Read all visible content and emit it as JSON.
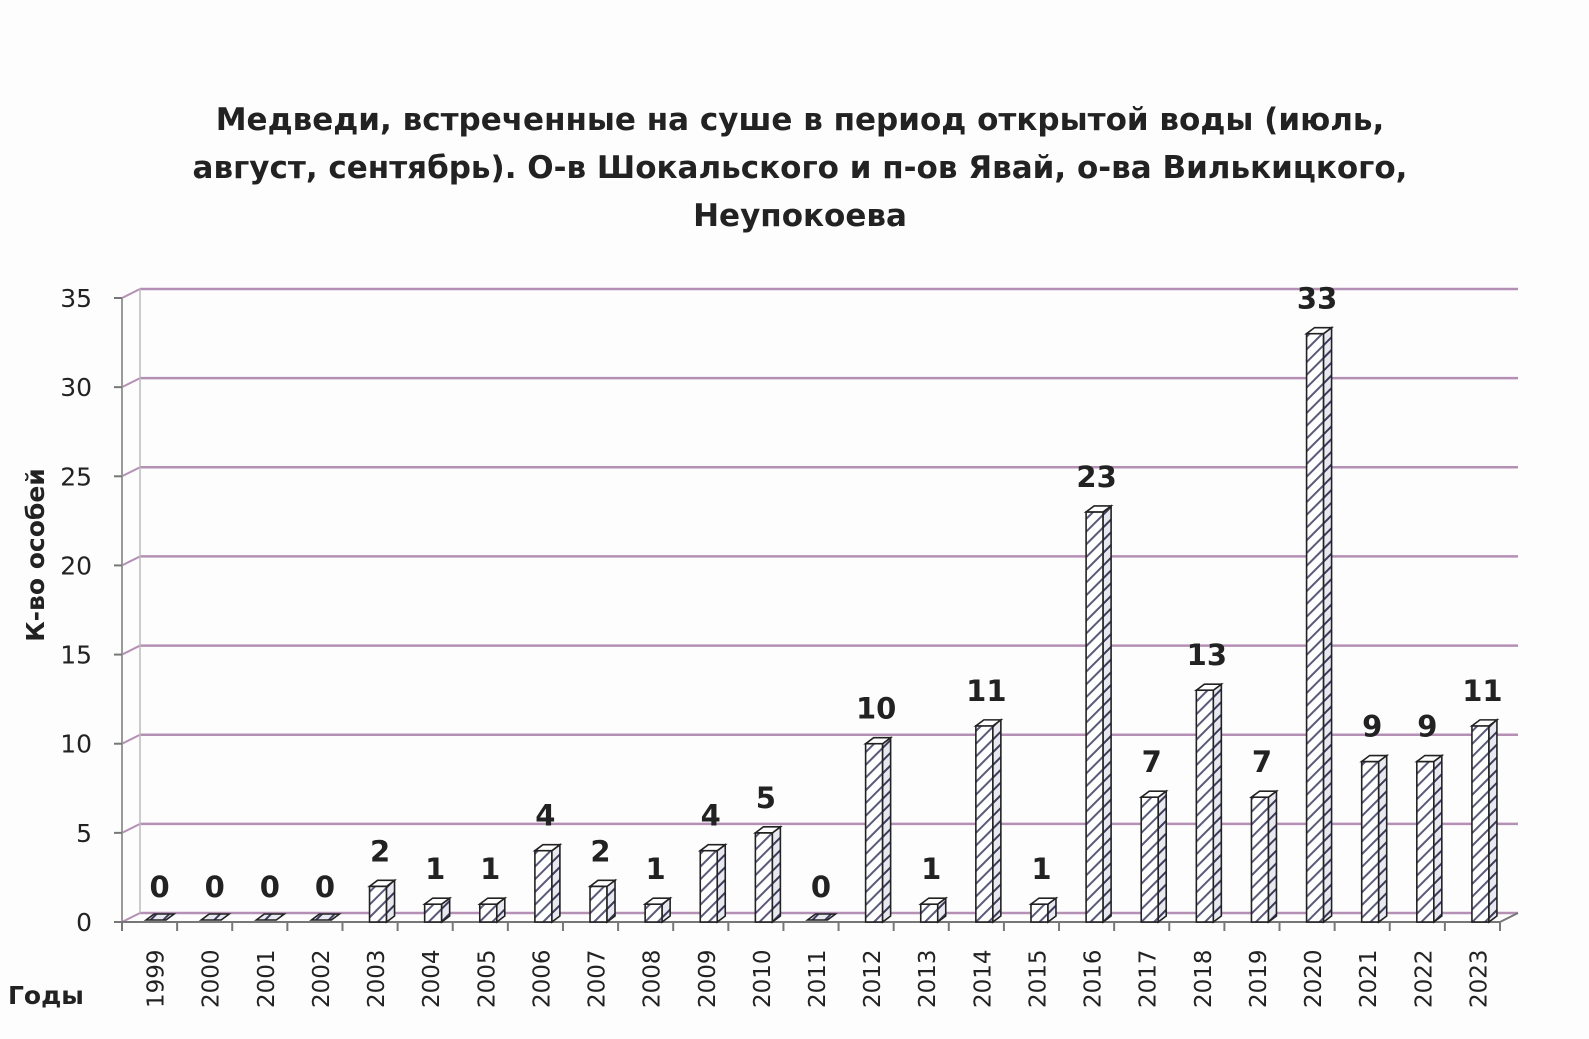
{
  "chart_data": {
    "type": "bar",
    "title_lines": [
      "Медведи, встреченные на суше в период открытой воды (июль,",
      "август, сентябрь). О-в Шокальского и п-ов Явай, о-ва Вилькицкого,",
      "Неупокоева"
    ],
    "xlabel": "Годы",
    "ylabel": "К-во особей",
    "ylim": [
      0,
      35
    ],
    "yticks": [
      0,
      5,
      10,
      15,
      20,
      25,
      30,
      35
    ],
    "grid": true,
    "style": "3d-column-hatched",
    "colors": {
      "bar_fill": "#ffffff",
      "bar_hatch": "#5a5a7a",
      "bar_edge": "#222222",
      "gridline": "#b590b5",
      "wall": "#ffffff"
    },
    "categories": [
      "1999",
      "2000",
      "2001",
      "2002",
      "2003",
      "2004",
      "2005",
      "2006",
      "2007",
      "2008",
      "2009",
      "2010",
      "2011",
      "2012",
      "2013",
      "2014",
      "2015",
      "2016",
      "2017",
      "2018",
      "2019",
      "2020",
      "2021",
      "2022",
      "2023"
    ],
    "values": [
      0,
      0,
      0,
      0,
      2,
      1,
      1,
      4,
      2,
      1,
      4,
      5,
      0,
      10,
      1,
      11,
      1,
      23,
      7,
      13,
      7,
      33,
      9,
      9,
      11
    ],
    "data_labels": [
      "0",
      "0",
      "0",
      "0",
      "2",
      "1",
      "1",
      "4",
      "2",
      "1",
      "4",
      "5",
      "0",
      "10",
      "1",
      "11",
      "1",
      "23",
      "7",
      "13",
      "7",
      "33",
      "9",
      "9",
      "11"
    ]
  }
}
